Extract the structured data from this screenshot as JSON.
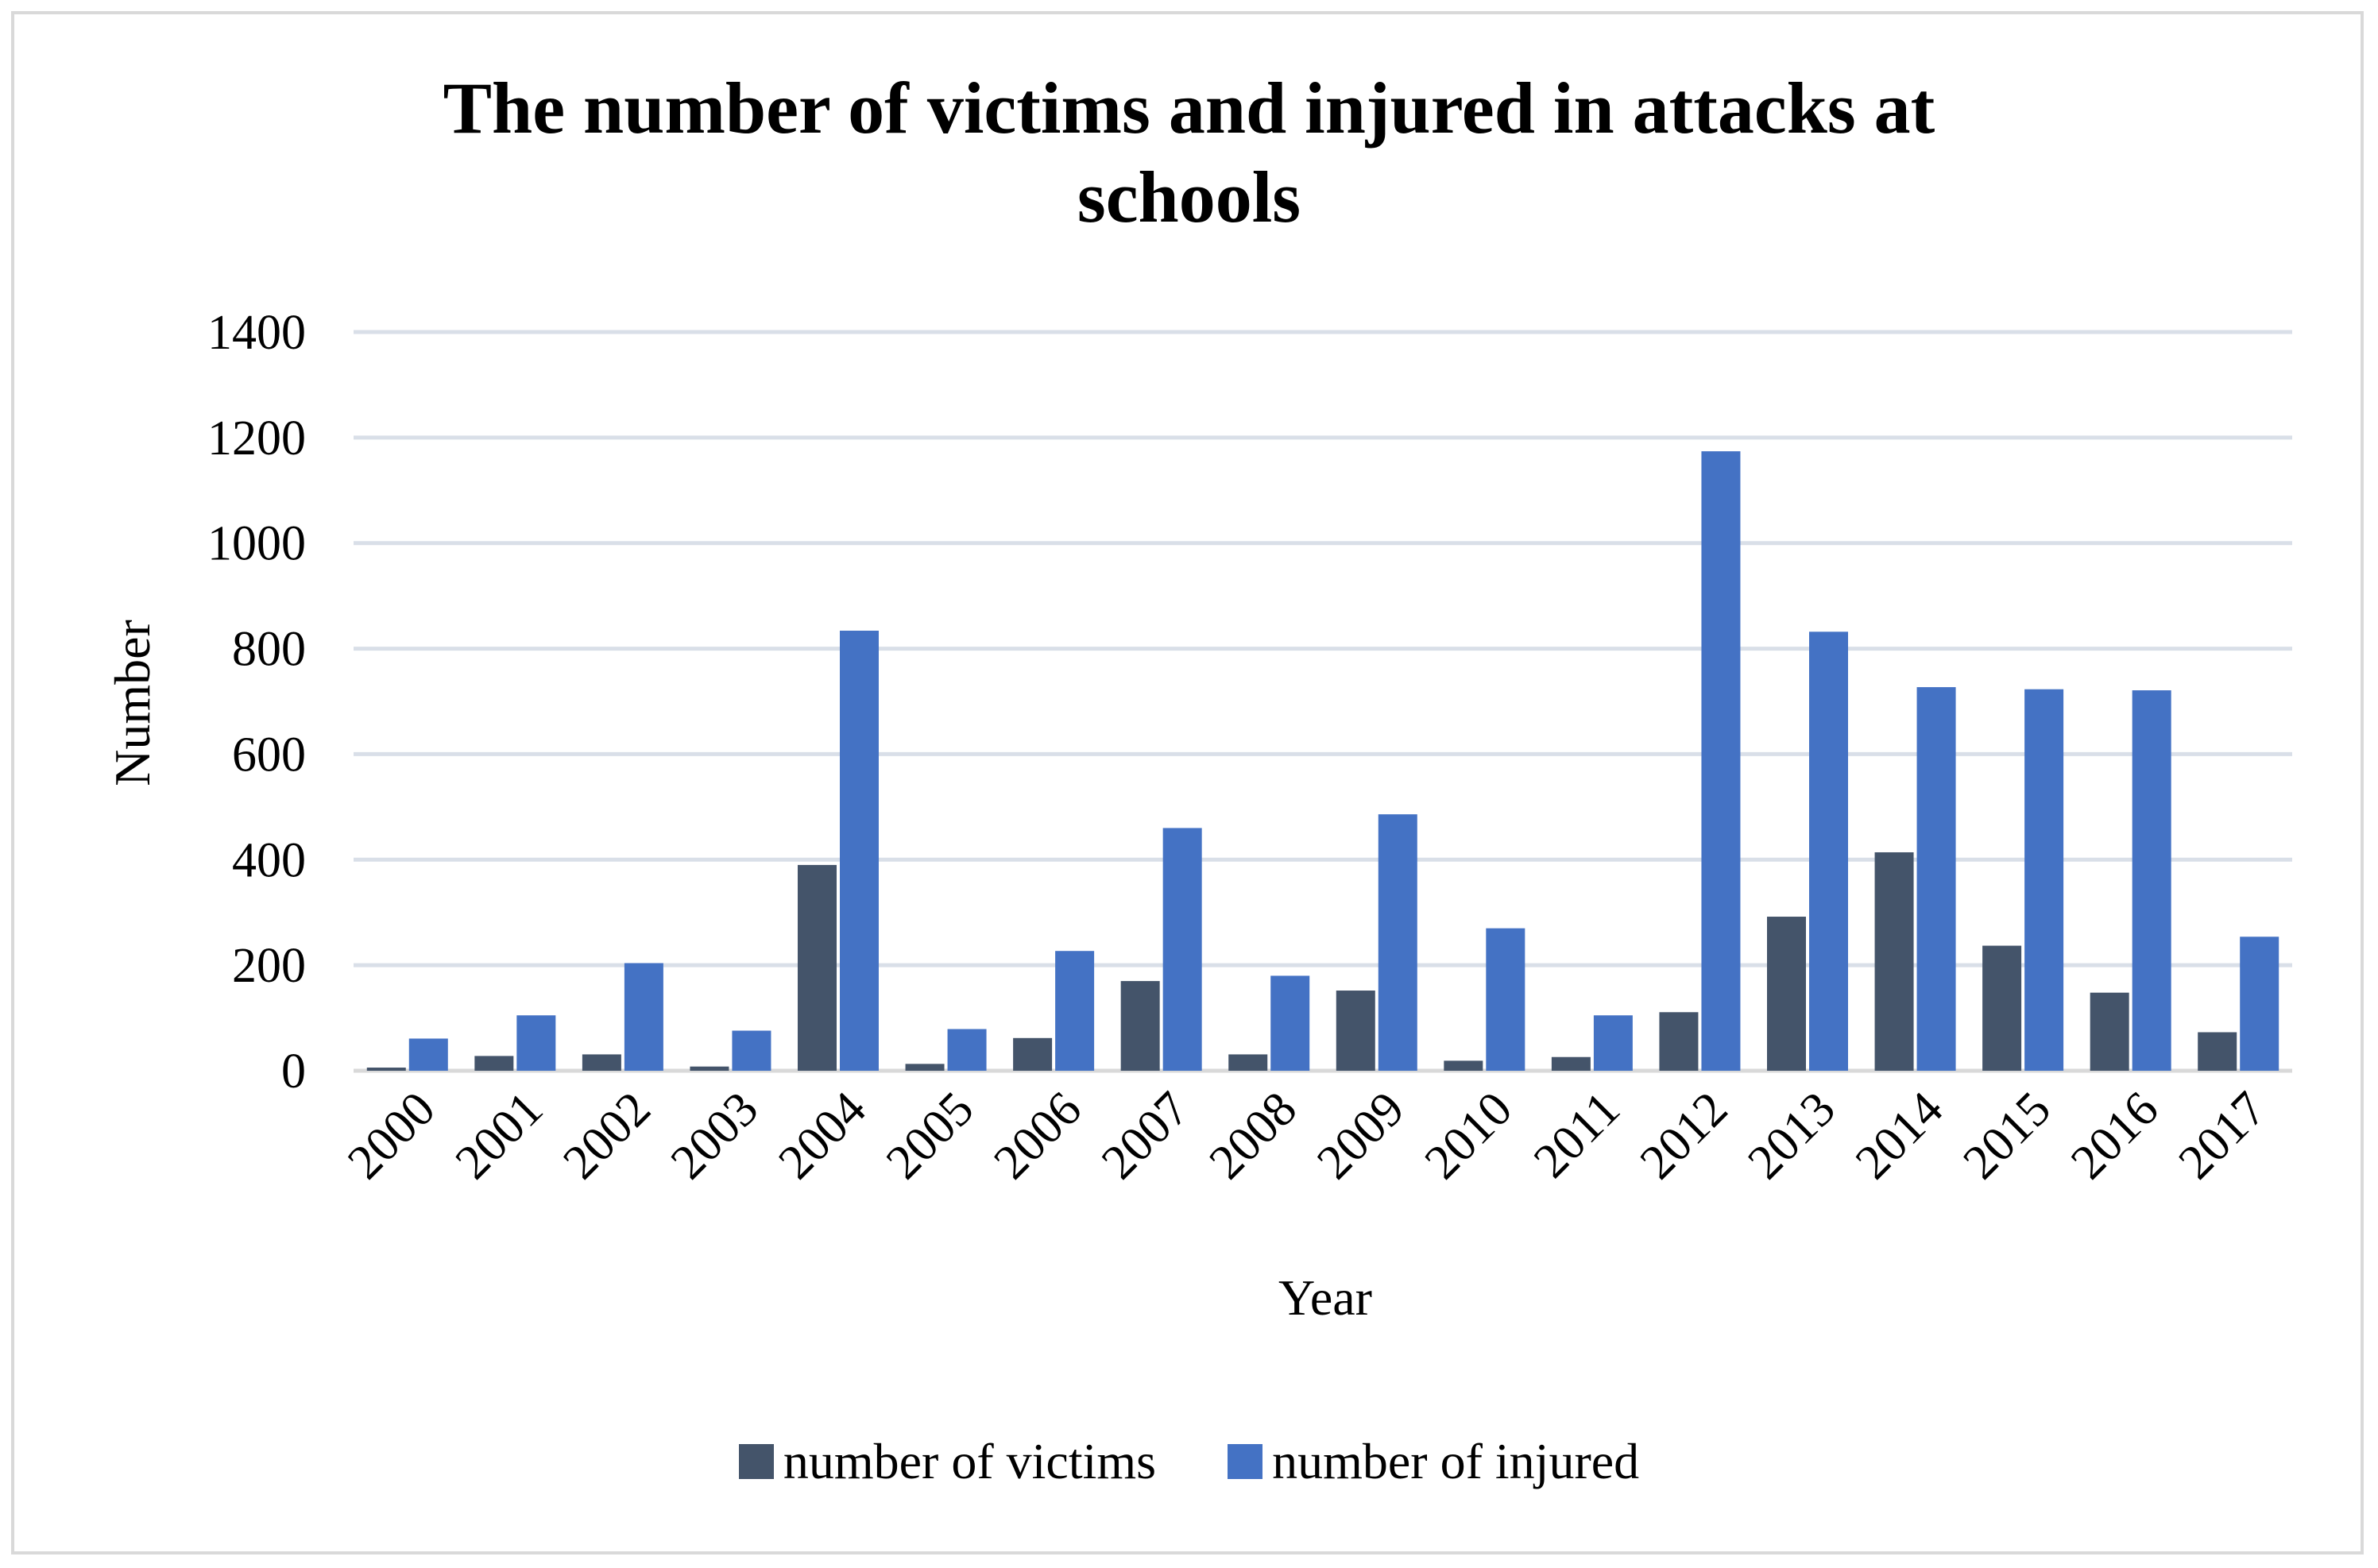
{
  "colors": {
    "victims": "#44546a",
    "injured": "#4472c4",
    "grid": "#d9dfe8",
    "axis": "#d9d9d9"
  },
  "chart_data": {
    "type": "bar",
    "title_lines": [
      "The number of victims and injured in attacks at",
      "schools"
    ],
    "xlabel": "Year",
    "ylabel": "Number",
    "ylim": [
      0,
      1400
    ],
    "yticks": [
      "0",
      "200",
      "400",
      "600",
      "800",
      "1000",
      "1200",
      "1400"
    ],
    "categories": [
      "2000",
      "2001",
      "2002",
      "2003",
      "2004",
      "2005",
      "2006",
      "2007",
      "2008",
      "2009",
      "2010",
      "2011",
      "2012",
      "2013",
      "2014",
      "2015",
      "2016",
      "2017"
    ],
    "series": [
      {
        "name": "number of victims",
        "values": [
          6,
          28,
          31,
          8,
          390,
          13,
          62,
          170,
          31,
          152,
          19,
          26,
          111,
          292,
          414,
          237,
          148,
          73
        ]
      },
      {
        "name": "number of injured",
        "values": [
          61,
          105,
          204,
          76,
          834,
          79,
          227,
          460,
          180,
          486,
          270,
          105,
          1174,
          832,
          727,
          723,
          721,
          254
        ]
      }
    ],
    "legend_position": "bottom"
  }
}
